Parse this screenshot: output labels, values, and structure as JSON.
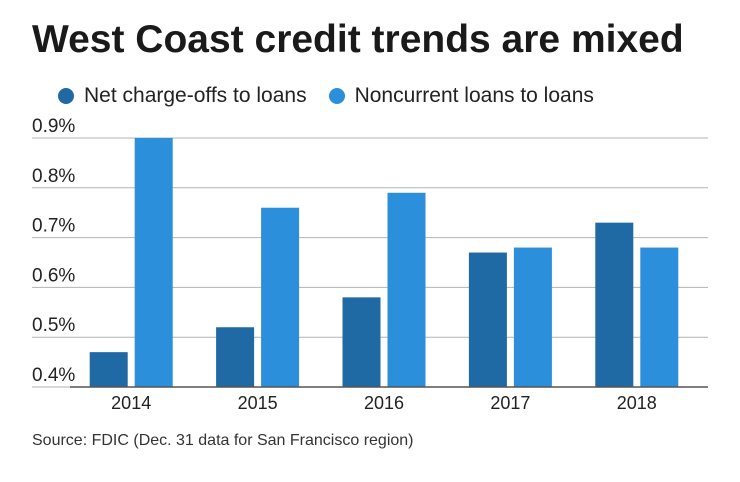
{
  "title": "West Coast credit trends are mixed",
  "source": "Source: FDIC (Dec. 31 data for San Francisco region)",
  "colors": {
    "series1": "#1f6aa5",
    "series2": "#2b8fdb",
    "grid": "#b3b3b3",
    "axis": "#555555"
  },
  "chart_data": {
    "type": "bar",
    "categories": [
      "2014",
      "2015",
      "2016",
      "2017",
      "2018"
    ],
    "series": [
      {
        "name": "Net charge-offs to loans",
        "values": [
          0.47,
          0.52,
          0.58,
          0.67,
          0.73
        ]
      },
      {
        "name": "Noncurrent loans to loans",
        "values": [
          0.9,
          0.76,
          0.79,
          0.68,
          0.68
        ]
      }
    ],
    "ylim": [
      0.4,
      0.9
    ],
    "yticks": [
      "0.4%",
      "0.5%",
      "0.6%",
      "0.7%",
      "0.8%",
      "0.9%"
    ],
    "ytick_values": [
      0.4,
      0.5,
      0.6,
      0.7,
      0.8,
      0.9
    ],
    "grid": true,
    "legend_position": "top-left"
  }
}
